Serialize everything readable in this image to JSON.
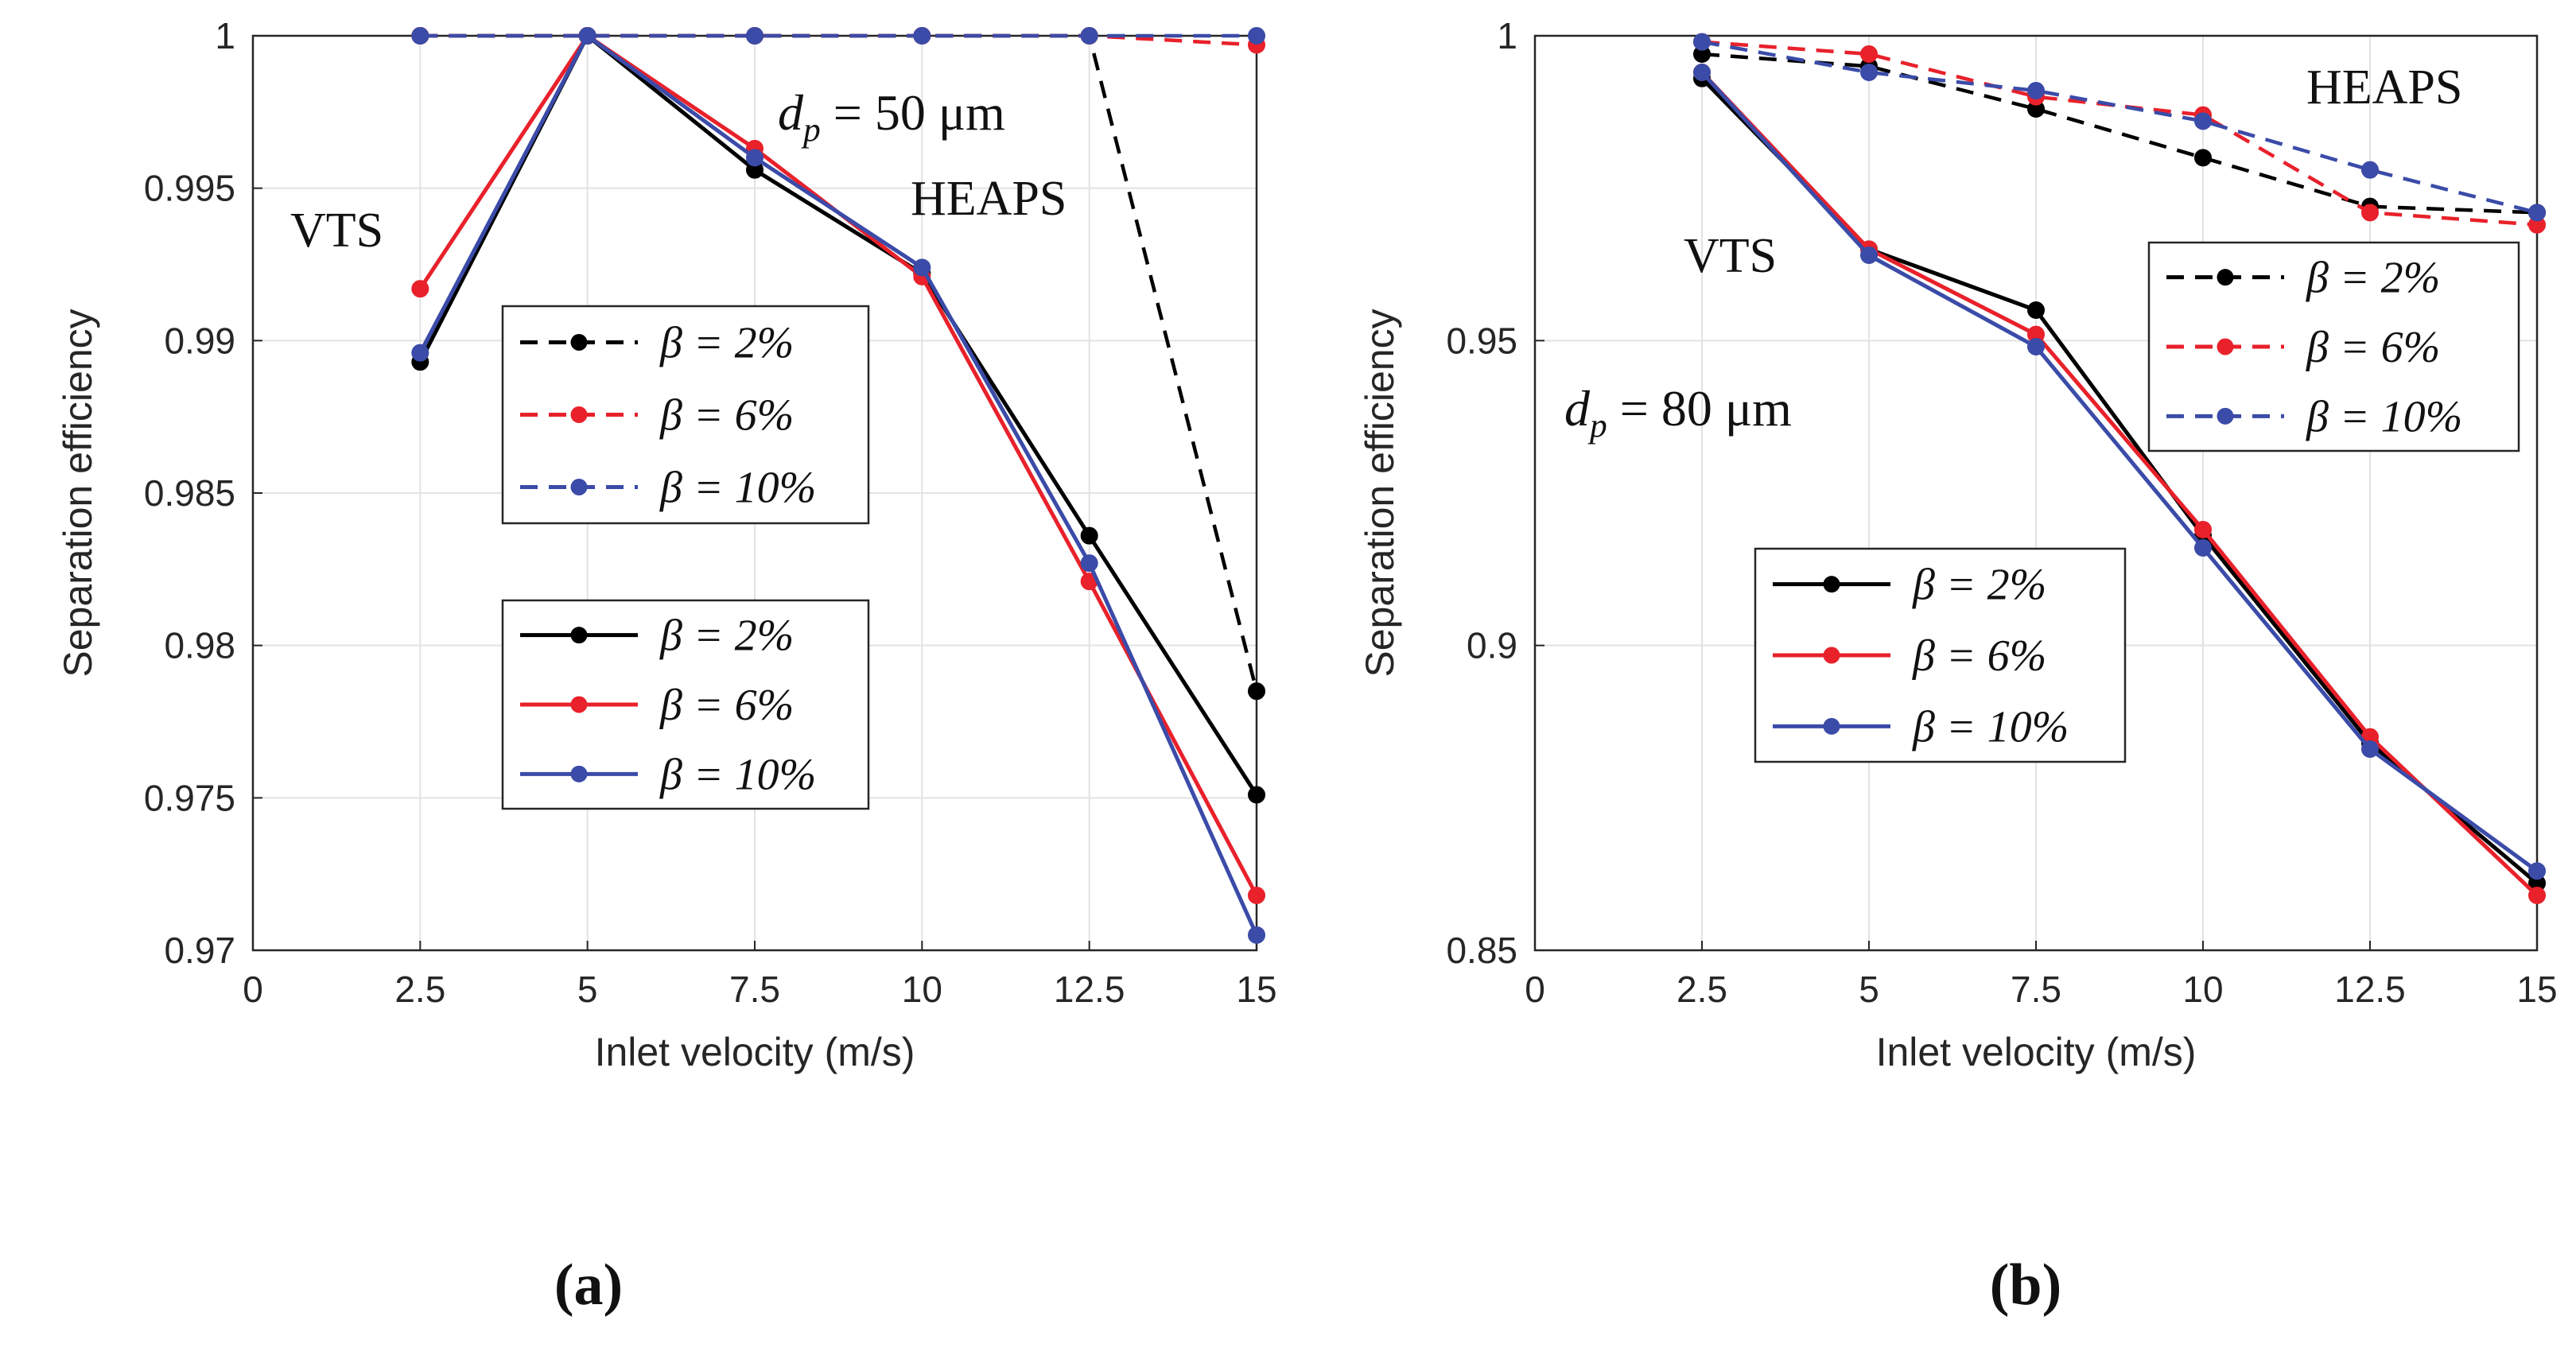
{
  "chart_data": [
    {
      "type": "line",
      "panel_label": "(a)",
      "xlabel": "Inlet velocity (m/s)",
      "ylabel": "Separation efficiency",
      "xlim": [
        0,
        15
      ],
      "ylim": [
        0.97,
        1
      ],
      "xticks": [
        "0",
        "2.5",
        "5",
        "7.5",
        "10",
        "12.5",
        "15"
      ],
      "yticks": [
        "0.97",
        "0.975",
        "0.98",
        "0.985",
        "0.99",
        "0.995",
        "1"
      ],
      "grid": true,
      "annotations": [
        {
          "text": "VTS"
        },
        {
          "text": "HEAPS"
        },
        {
          "text": "d_p = 50 μm",
          "symbol": "d",
          "subscript": "p",
          "rest": " = 50 μm"
        }
      ],
      "legends": [
        {
          "group": "HEAPS",
          "placement": "center",
          "entries": [
            "β = 2%",
            "β = 6%",
            "β = 10%"
          ]
        },
        {
          "group": "VTS",
          "placement": "center-bottom",
          "entries": [
            "β = 2%",
            "β = 6%",
            "β = 10%"
          ]
        }
      ],
      "x": [
        2.5,
        5,
        7.5,
        10,
        12.5,
        15
      ],
      "series": [
        {
          "group": "HEAPS",
          "beta": "β = 2%",
          "color": "#000000",
          "dash": true,
          "values": [
            1.0,
            1.0,
            1.0,
            1.0,
            1.0,
            0.9785
          ]
        },
        {
          "group": "HEAPS",
          "beta": "β = 6%",
          "color": "#e8212b",
          "dash": true,
          "values": [
            1.0,
            1.0,
            1.0,
            1.0,
            1.0,
            0.9997
          ]
        },
        {
          "group": "HEAPS",
          "beta": "β = 10%",
          "color": "#3b4ba8",
          "dash": true,
          "values": [
            1.0,
            1.0,
            1.0,
            1.0,
            1.0,
            1.0
          ]
        },
        {
          "group": "VTS",
          "beta": "β = 2%",
          "color": "#000000",
          "dash": false,
          "values": [
            0.9893,
            1.0,
            0.9956,
            0.9922,
            0.9836,
            0.9751
          ]
        },
        {
          "group": "VTS",
          "beta": "β = 6%",
          "color": "#e8212b",
          "dash": false,
          "values": [
            0.9917,
            1.0,
            0.9963,
            0.9921,
            0.9821,
            0.9718
          ]
        },
        {
          "group": "VTS",
          "beta": "β = 10%",
          "color": "#3b4ba8",
          "dash": false,
          "values": [
            0.9896,
            1.0,
            0.996,
            0.9924,
            0.9827,
            0.9705
          ]
        }
      ]
    },
    {
      "type": "line",
      "panel_label": "(b)",
      "xlabel": "Inlet velocity (m/s)",
      "ylabel": "Separation efficiency",
      "xlim": [
        0,
        15
      ],
      "ylim": [
        0.85,
        1
      ],
      "xticks": [
        "0",
        "2.5",
        "5",
        "7.5",
        "10",
        "12.5",
        "15"
      ],
      "yticks": [
        "0.85",
        "0.9",
        "0.95",
        "1"
      ],
      "grid": true,
      "annotations": [
        {
          "text": "VTS"
        },
        {
          "text": "HEAPS"
        },
        {
          "text": "d_p = 80 μm",
          "symbol": "d",
          "subscript": "p",
          "rest": " = 80 μm"
        }
      ],
      "legends": [
        {
          "group": "HEAPS",
          "placement": "top-right",
          "entries": [
            "β = 2%",
            "β = 6%",
            "β = 10%"
          ]
        },
        {
          "group": "VTS",
          "placement": "center-left",
          "entries": [
            "β = 2%",
            "β = 6%",
            "β = 10%"
          ]
        }
      ],
      "x": [
        2.5,
        5,
        7.5,
        10,
        12.5,
        15
      ],
      "series": [
        {
          "group": "HEAPS",
          "beta": "β = 2%",
          "color": "#000000",
          "dash": true,
          "values": [
            0.997,
            0.995,
            0.988,
            0.98,
            0.972,
            0.971
          ]
        },
        {
          "group": "HEAPS",
          "beta": "β = 6%",
          "color": "#e8212b",
          "dash": true,
          "values": [
            0.999,
            0.997,
            0.99,
            0.987,
            0.971,
            0.969
          ]
        },
        {
          "group": "HEAPS",
          "beta": "β = 10%",
          "color": "#3b4ba8",
          "dash": true,
          "values": [
            0.999,
            0.994,
            0.991,
            0.986,
            0.978,
            0.971
          ]
        },
        {
          "group": "VTS",
          "beta": "β = 2%",
          "color": "#000000",
          "dash": false,
          "values": [
            0.993,
            0.965,
            0.955,
            0.918,
            0.884,
            0.861
          ]
        },
        {
          "group": "VTS",
          "beta": "β = 6%",
          "color": "#e8212b",
          "dash": false,
          "values": [
            0.994,
            0.965,
            0.951,
            0.919,
            0.885,
            0.859
          ]
        },
        {
          "group": "VTS",
          "beta": "β = 10%",
          "color": "#3b4ba8",
          "dash": false,
          "values": [
            0.994,
            0.964,
            0.949,
            0.916,
            0.883,
            0.863
          ]
        }
      ]
    }
  ]
}
